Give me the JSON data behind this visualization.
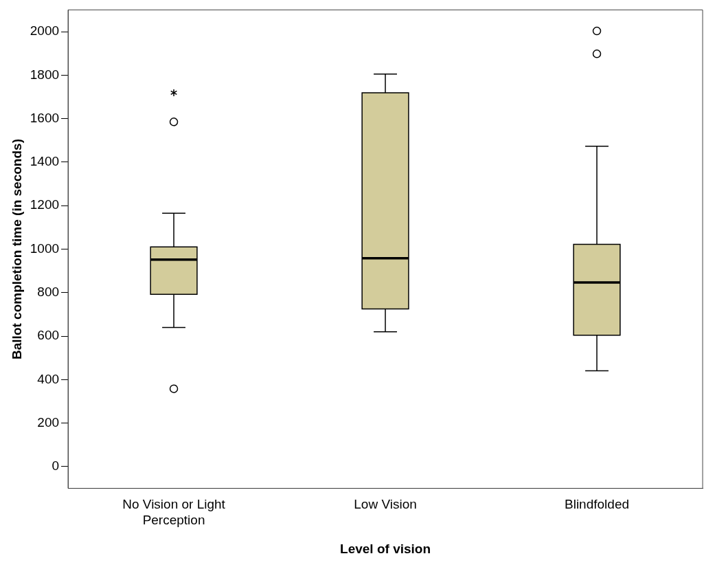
{
  "chart_data": {
    "type": "box",
    "xlabel": "Level of vision",
    "ylabel": "Ballot completion time (in seconds)",
    "categories": [
      "No Vision or Light Perception",
      "Low Vision",
      "Blindfolded"
    ],
    "color": "#d3cc9b",
    "boxes": [
      {
        "low": 640,
        "q1": 792,
        "median": 952,
        "q3": 1010,
        "high": 1165,
        "outliers": [
          1719,
          1585,
          358
        ]
      },
      {
        "low": 620,
        "q1": 725,
        "median": 958,
        "q3": 1719,
        "high": 1805
      },
      {
        "low": 441,
        "q1": 604,
        "median": 847,
        "q3": 1022,
        "high": 1473,
        "outliers": [
          2003,
          1898
        ]
      }
    ],
    "ylim": [
      -100,
      2100
    ],
    "yticks": [
      0,
      200,
      400,
      600,
      800,
      1000,
      1200,
      1400,
      1600,
      1800,
      2000
    ],
    "grid": false,
    "legend": false
  }
}
